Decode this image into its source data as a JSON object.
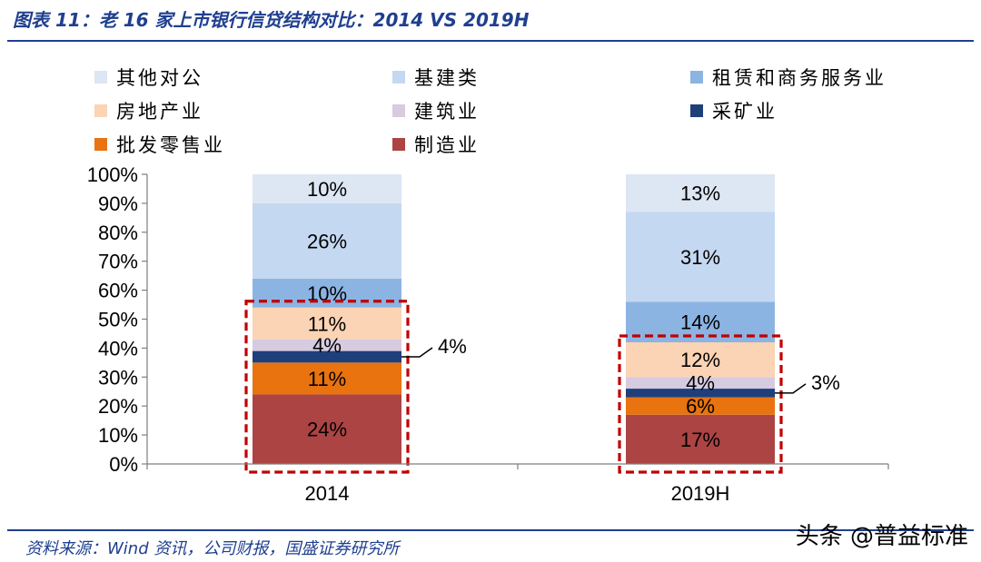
{
  "figure": {
    "title": "图表 11：老 16 家上市银行信贷结构对比：2014 VS 2019H",
    "source": "资料来源：Wind 资讯，公司财报，国盛证券研究所",
    "watermark": "头条 @普益标准"
  },
  "chart_data": {
    "type": "bar",
    "stacked": true,
    "categories": [
      "2014",
      "2019H"
    ],
    "ylim": [
      0,
      100
    ],
    "yticks": [
      "0%",
      "10%",
      "20%",
      "30%",
      "40%",
      "50%",
      "60%",
      "70%",
      "80%",
      "90%",
      "100%"
    ],
    "series": [
      {
        "name": "制造业",
        "color": "#ac4444",
        "values": [
          24,
          17
        ],
        "labels": [
          "24%",
          "17%"
        ]
      },
      {
        "name": "批发零售业",
        "color": "#e8730f",
        "values": [
          11,
          6
        ],
        "labels": [
          "11%",
          "6%"
        ]
      },
      {
        "name": "采矿业",
        "color": "#1f3f7a",
        "values": [
          4,
          3
        ],
        "labels": [
          "",
          ""
        ]
      },
      {
        "name": "建筑业",
        "color": "#d6cbe0",
        "values": [
          4,
          4
        ],
        "labels": [
          "4%",
          "4%"
        ]
      },
      {
        "name": "房地产业",
        "color": "#fbd3b5",
        "values": [
          11,
          12
        ],
        "labels": [
          "11%",
          "12%"
        ]
      },
      {
        "name": "租赁和商务服务业",
        "color": "#8cb4e3",
        "values": [
          10,
          14
        ],
        "labels": [
          "10%",
          "14%"
        ]
      },
      {
        "name": "基建类",
        "color": "#c5d8f1",
        "values": [
          26,
          31
        ],
        "labels": [
          "26%",
          "31%"
        ]
      },
      {
        "name": "其他对公",
        "color": "#dde6f3",
        "values": [
          10,
          13
        ],
        "labels": [
          "10%",
          "13%"
        ]
      }
    ],
    "callouts": [
      {
        "category": "2014",
        "series": "采矿业",
        "label": "4%"
      },
      {
        "category": "2019H",
        "series": "采矿业",
        "label": "3%"
      }
    ],
    "highlight": {
      "bottom_series_count": 5,
      "style": "dashed",
      "color": "#c00000"
    },
    "legend": {
      "placement": "top",
      "order": [
        "其他对公",
        "基建类",
        "租赁和商务服务业",
        "房地产业",
        "建筑业",
        "采矿业",
        "批发零售业",
        "制造业"
      ]
    }
  }
}
